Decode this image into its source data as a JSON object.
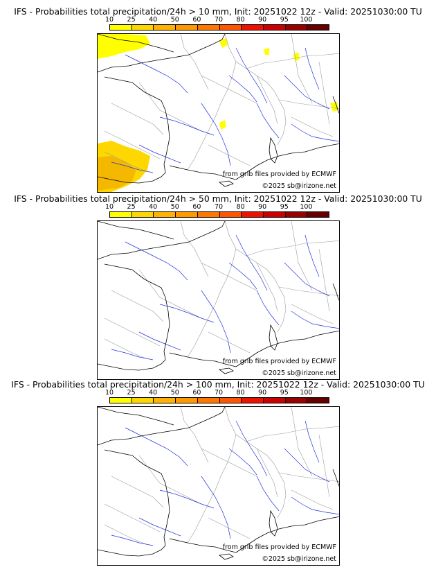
{
  "colorbar": {
    "ticks": [
      "10",
      "25",
      "40",
      "50",
      "60",
      "70",
      "80",
      "90",
      "95",
      "100"
    ],
    "colors": [
      "#ffff00",
      "#ffd700",
      "#ffb300",
      "#ff9900",
      "#ff7700",
      "#ff5500",
      "#ee1100",
      "#cc0000",
      "#990000",
      "#660000"
    ]
  },
  "panels": [
    {
      "title": "IFS - Probabilities total precipitation/24h > 10 mm, Init: 20251022 12z - Valid: 20251030:00 TU",
      "credit_source": "from grib files provided by ECMWF",
      "credit_copyright": "©2025 sb@irizone.net",
      "has_precip": true
    },
    {
      "title": "IFS - Probabilities total precipitation/24h > 50 mm, Init: 20251022 12z - Valid: 20251030:00 TU",
      "credit_source": "from grib files provided by ECMWF",
      "credit_copyright": "©2025 sb@irizone.net",
      "has_precip": false
    },
    {
      "title": "IFS - Probabilities total precipitation/24h > 100 mm, Init: 20251022 12z - Valid: 20251030:00 TU",
      "credit_source": "from grib files provided by ECMWF",
      "credit_copyright": "©2025 sb@irizone.net",
      "has_precip": false
    }
  ],
  "map_colors": {
    "coast": "#000000",
    "borders": "#999999",
    "rivers": "#2233dd",
    "precip_low": "#ffff00",
    "precip_mid": "#ffd700",
    "precip_high": "#f5b800"
  }
}
